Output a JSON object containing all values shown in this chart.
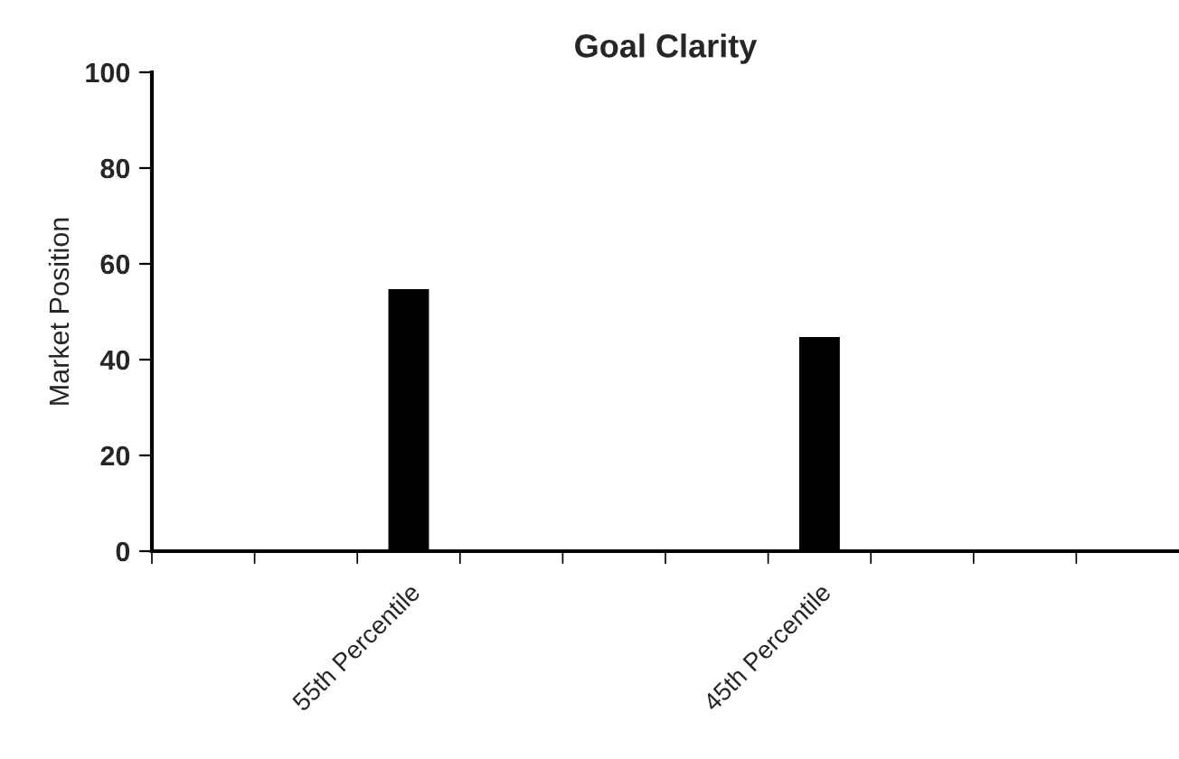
{
  "chart_data": {
    "type": "bar",
    "title": "Goal Clarity",
    "ylabel": "Market Position",
    "categories": [
      null,
      null,
      "55th Percentile",
      null,
      null,
      null,
      "45th Percentile",
      null,
      null,
      null
    ],
    "values": [
      null,
      null,
      55,
      null,
      null,
      null,
      45,
      null,
      null,
      null
    ],
    "color": "#000000",
    "ylim": [
      0,
      100
    ],
    "yticks": [
      0,
      20,
      40,
      60,
      80,
      100
    ],
    "grid": false,
    "legend": false
  }
}
